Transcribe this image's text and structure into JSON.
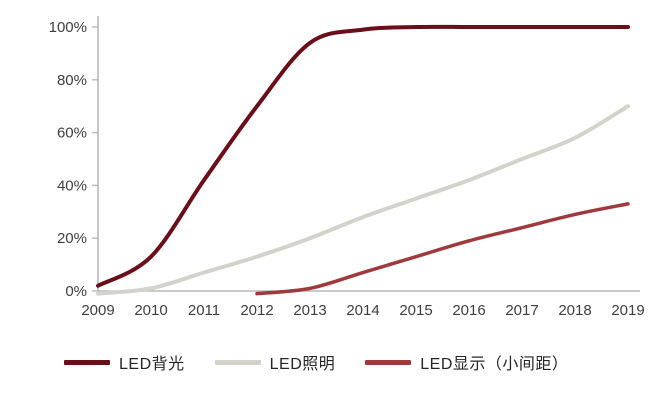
{
  "chart_data": {
    "type": "line",
    "x": [
      "2009",
      "2010",
      "2011",
      "2012",
      "2013",
      "2014",
      "2015",
      "2016",
      "2017",
      "2018",
      "2019"
    ],
    "series": [
      {
        "name": "LED背光",
        "color": "#6a0f1a",
        "stroke_width": 4,
        "values": [
          2,
          13,
          42,
          70,
          94,
          99,
          100,
          100,
          100,
          100,
          100
        ]
      },
      {
        "name": "LED照明",
        "color": "#d3d3cc",
        "stroke_width": 4,
        "values": [
          -1,
          1,
          7,
          13,
          20,
          28,
          35,
          42,
          50,
          58,
          70
        ]
      },
      {
        "name": "LED显示（小间距）",
        "color": "#9e3a3c",
        "stroke_width": 3.5,
        "values": [
          null,
          null,
          null,
          -1,
          1,
          7,
          13,
          19,
          24,
          29,
          33
        ]
      }
    ],
    "title": "",
    "xlabel": "",
    "ylabel": "",
    "ylim": [
      0,
      100
    ],
    "yticks": [
      {
        "value": 0,
        "label": "0%"
      },
      {
        "value": 20,
        "label": "20%"
      },
      {
        "value": 40,
        "label": "40%"
      },
      {
        "value": 60,
        "label": "60%"
      },
      {
        "value": 80,
        "label": "80%"
      },
      {
        "value": 100,
        "label": "100%"
      }
    ],
    "grid": false,
    "legend_position": "bottom"
  },
  "style": {
    "axis_color": "#b9b9b9",
    "tick_text_color": "#3f3f3f",
    "background": "#ffffff"
  }
}
